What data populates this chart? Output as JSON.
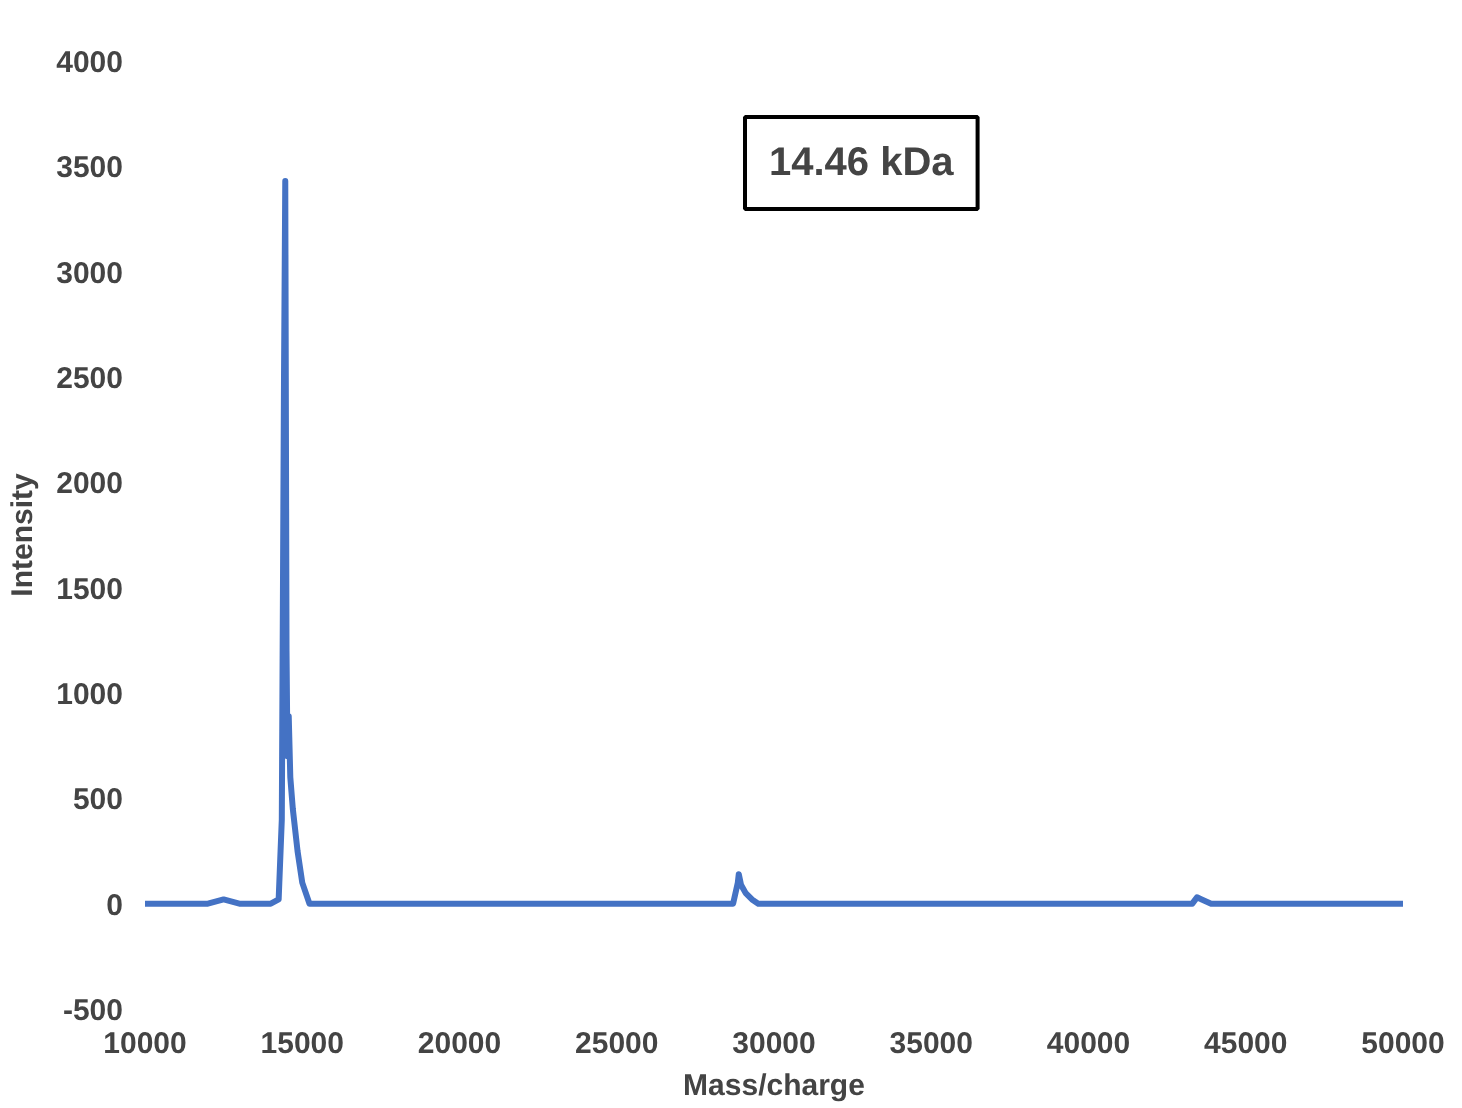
{
  "chart_data": {
    "type": "line",
    "xlabel": "Mass/charge",
    "ylabel": "Intensity",
    "annotations": [
      "14.46 kDa"
    ],
    "x": [
      10000,
      11000,
      12000,
      12500,
      13000,
      14000,
      14250,
      14350,
      14420,
      14460,
      14500,
      14530,
      14570,
      14620,
      14700,
      14850,
      15000,
      15230,
      16000,
      20000,
      25000,
      28000,
      28700,
      28850,
      28880,
      28950,
      29100,
      29300,
      29500,
      30000,
      35000,
      40000,
      43000,
      43300,
      43450,
      43600,
      43900,
      45000,
      50000
    ],
    "series": [
      {
        "color": "#4472c4",
        "values": [
          0,
          0,
          0,
          20,
          0,
          0,
          20,
          400,
          2500,
          3430,
          1200,
          700,
          890,
          600,
          450,
          250,
          100,
          0,
          0,
          0,
          0,
          0,
          0,
          100,
          140,
          90,
          50,
          20,
          0,
          0,
          0,
          0,
          0,
          0,
          30,
          20,
          0,
          0,
          0
        ]
      }
    ],
    "xlim": [
      10000,
      50000
    ],
    "xticks": [
      10000,
      15000,
      20000,
      25000,
      30000,
      35000,
      40000,
      45000,
      50000
    ],
    "ylim": [
      -500,
      4000
    ],
    "yticks": [
      -500,
      0,
      500,
      1000,
      1500,
      2000,
      2500,
      3000,
      3500,
      4000
    ],
    "grid": false
  }
}
